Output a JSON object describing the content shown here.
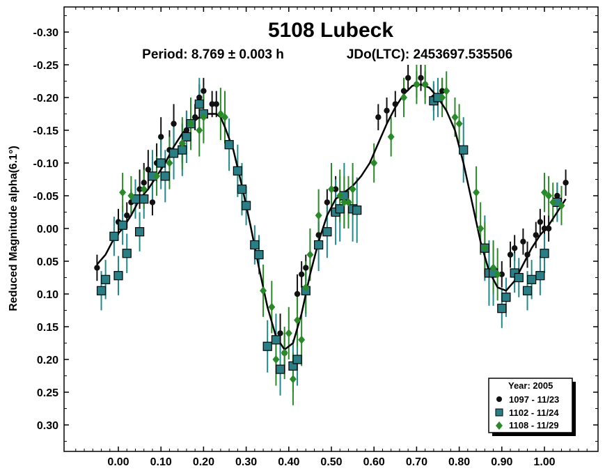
{
  "chart_data": {
    "type": "scatter",
    "title": "5108 Lubeck",
    "period_text": "Period: 8.769 ± 0.003 h",
    "epoch_text": "JDo(LTC): 2453697.535506",
    "xlabel": "",
    "ylabel": "Reduced Magnitude alpha(6.1°)",
    "xlim": [
      -0.1,
      1.12
    ],
    "ylim": [
      -0.35,
      0.35
    ],
    "y_inverted": true,
    "grid": false,
    "x_ticks": [
      0.0,
      0.1,
      0.2,
      0.3,
      0.4,
      0.5,
      0.6,
      0.7,
      0.8,
      0.9,
      1.0
    ],
    "x_tick_labels": [
      "0.00",
      "0.10",
      "0.20",
      "0.30",
      "0.40",
      "0.50",
      "0.60",
      "0.70",
      "0.80",
      "0.90",
      "1.00"
    ],
    "y_ticks": [
      -0.3,
      -0.25,
      -0.2,
      -0.15,
      -0.1,
      -0.05,
      0.0,
      0.05,
      0.1,
      0.15,
      0.2,
      0.25,
      0.3
    ],
    "y_tick_labels": [
      "-0.30",
      "-0.25",
      "-0.20",
      "-0.15",
      "-0.10",
      "-0.05",
      "0.00",
      "0.05",
      "0.10",
      "0.15",
      "0.20",
      "0.25",
      "0.30"
    ],
    "legend": {
      "placement": "bottom-right",
      "title": "Year: 2005",
      "entries": [
        "1097 - 11/23",
        "1102 - 11/24",
        "1108 - 11/29"
      ]
    },
    "series": [
      {
        "name": "1097 - 11/23",
        "marker": "circle",
        "color": "#111111",
        "error_color": "#111111",
        "points": [
          [
            -0.05,
            0.06,
            0.02
          ],
          [
            0.02,
            -0.02,
            0.02
          ],
          [
            0.0,
            -0.01,
            0.02
          ],
          [
            0.03,
            -0.04,
            0.02
          ],
          [
            0.05,
            -0.06,
            0.03
          ],
          [
            0.07,
            -0.09,
            0.03
          ],
          [
            0.09,
            -0.1,
            0.03
          ],
          [
            0.1,
            -0.14,
            0.03
          ],
          [
            0.12,
            -0.12,
            0.03
          ],
          [
            0.13,
            -0.16,
            0.03
          ],
          [
            0.15,
            -0.13,
            0.03
          ],
          [
            0.16,
            -0.15,
            0.03
          ],
          [
            0.18,
            -0.17,
            0.02
          ],
          [
            0.19,
            -0.2,
            0.02
          ],
          [
            0.2,
            -0.21,
            0.02
          ],
          [
            0.22,
            -0.19,
            0.02
          ],
          [
            0.23,
            -0.19,
            0.02
          ],
          [
            0.08,
            -0.04,
            0.02
          ],
          [
            0.06,
            -0.07,
            0.03
          ],
          [
            0.38,
            0.16,
            0.03
          ],
          [
            0.39,
            0.19,
            0.03
          ],
          [
            0.42,
            0.1,
            0.03
          ],
          [
            0.43,
            0.07,
            0.02
          ],
          [
            0.44,
            0.06,
            0.02
          ],
          [
            0.47,
            0.01,
            0.02
          ],
          [
            0.49,
            -0.04,
            0.02
          ],
          [
            0.51,
            -0.06,
            0.02
          ],
          [
            0.54,
            -0.04,
            0.02
          ],
          [
            0.61,
            -0.17,
            0.02
          ],
          [
            0.63,
            -0.18,
            0.02
          ],
          [
            0.65,
            -0.19,
            0.02
          ],
          [
            0.67,
            -0.21,
            0.02
          ],
          [
            0.68,
            -0.23,
            0.02
          ],
          [
            0.7,
            -0.22,
            0.02
          ],
          [
            0.71,
            -0.23,
            0.02
          ],
          [
            0.72,
            -0.22,
            0.02
          ],
          [
            0.74,
            -0.2,
            0.02
          ],
          [
            0.76,
            -0.21,
            0.02
          ],
          [
            0.9,
            0.07,
            0.02
          ],
          [
            0.92,
            0.04,
            0.02
          ],
          [
            0.93,
            0.03,
            0.02
          ],
          [
            0.95,
            0.02,
            0.02
          ],
          [
            0.96,
            0.04,
            0.02
          ],
          [
            0.98,
            0.01,
            0.02
          ],
          [
            0.99,
            -0.01,
            0.02
          ],
          [
            1.0,
            0.0,
            0.02
          ],
          [
            1.01,
            0.0,
            0.02
          ],
          [
            1.03,
            -0.05,
            0.02
          ],
          [
            1.05,
            -0.07,
            0.02
          ]
        ]
      },
      {
        "name": "1102 - 11/24",
        "marker": "square",
        "color": "#2a7f86",
        "error_color": "#1f8a8a",
        "points": [
          [
            -0.04,
            0.095,
            0.03
          ],
          [
            -0.03,
            0.078,
            0.03
          ],
          [
            0.0,
            0.072,
            0.03
          ],
          [
            -0.01,
            0.012,
            0.03
          ],
          [
            0.01,
            -0.005,
            0.03
          ],
          [
            0.02,
            0.038,
            0.03
          ],
          [
            0.04,
            -0.045,
            0.03
          ],
          [
            0.05,
            0.005,
            0.03
          ],
          [
            0.06,
            -0.045,
            0.03
          ],
          [
            0.08,
            -0.08,
            0.04
          ],
          [
            0.1,
            -0.1,
            0.04
          ],
          [
            0.11,
            -0.08,
            0.04
          ],
          [
            0.13,
            -0.115,
            0.04
          ],
          [
            0.15,
            -0.12,
            0.04
          ],
          [
            0.16,
            -0.14,
            0.04
          ],
          [
            0.17,
            -0.16,
            0.04
          ],
          [
            0.19,
            -0.19,
            0.04
          ],
          [
            0.2,
            -0.175,
            0.04
          ],
          [
            0.26,
            -0.128,
            0.04
          ],
          [
            0.28,
            -0.088,
            0.04
          ],
          [
            0.29,
            -0.06,
            0.04
          ],
          [
            0.3,
            -0.035,
            0.03
          ],
          [
            0.32,
            0.025,
            0.03
          ],
          [
            0.33,
            0.04,
            0.03
          ],
          [
            0.35,
            0.18,
            0.04
          ],
          [
            0.37,
            0.17,
            0.04
          ],
          [
            0.38,
            0.215,
            0.04
          ],
          [
            0.41,
            0.21,
            0.04
          ],
          [
            0.42,
            0.2,
            0.04
          ],
          [
            0.44,
            0.095,
            0.04
          ],
          [
            0.47,
            0.025,
            0.04
          ],
          [
            0.49,
            0.005,
            0.04
          ],
          [
            0.51,
            -0.025,
            0.05
          ],
          [
            0.52,
            -0.03,
            0.05
          ],
          [
            0.53,
            -0.05,
            0.05
          ],
          [
            0.55,
            -0.03,
            0.05
          ],
          [
            0.56,
            -0.028,
            0.05
          ],
          [
            0.74,
            -0.195,
            0.03
          ],
          [
            0.75,
            -0.2,
            0.03
          ],
          [
            0.81,
            -0.12,
            0.05
          ],
          [
            0.86,
            0.03,
            0.05
          ],
          [
            0.87,
            0.068,
            0.05
          ],
          [
            0.88,
            0.068,
            0.05
          ],
          [
            0.9,
            0.122,
            0.03
          ],
          [
            0.91,
            0.105,
            0.03
          ],
          [
            0.93,
            0.068,
            0.03
          ],
          [
            0.94,
            0.075,
            0.03
          ],
          [
            0.96,
            0.095,
            0.03
          ],
          [
            0.97,
            0.078,
            0.03
          ],
          [
            0.99,
            0.072,
            0.03
          ],
          [
            1.0,
            0.038,
            0.03
          ],
          [
            1.03,
            -0.04,
            0.03
          ]
        ]
      },
      {
        "name": "1108 - 11/29",
        "marker": "diamond",
        "color": "#2a8a2a",
        "error_color": "#2a8a2a",
        "points": [
          [
            0.01,
            -0.055,
            0.03
          ],
          [
            0.03,
            -0.05,
            0.03
          ],
          [
            0.06,
            -0.06,
            0.03
          ],
          [
            0.09,
            -0.08,
            0.03
          ],
          [
            0.12,
            -0.1,
            0.04
          ],
          [
            0.15,
            -0.13,
            0.04
          ],
          [
            0.17,
            -0.16,
            0.04
          ],
          [
            0.19,
            -0.15,
            0.04
          ],
          [
            0.2,
            -0.17,
            0.04
          ],
          [
            0.24,
            -0.175,
            0.04
          ],
          [
            0.25,
            -0.17,
            0.04
          ],
          [
            0.34,
            0.095,
            0.04
          ],
          [
            0.36,
            0.12,
            0.04
          ],
          [
            0.37,
            0.2,
            0.04
          ],
          [
            0.39,
            0.19,
            0.04
          ],
          [
            0.4,
            0.16,
            0.04
          ],
          [
            0.41,
            0.23,
            0.04
          ],
          [
            0.42,
            0.14,
            0.04
          ],
          [
            0.43,
            0.17,
            0.04
          ],
          [
            0.44,
            0.09,
            0.04
          ],
          [
            0.45,
            0.04,
            0.04
          ],
          [
            0.47,
            -0.02,
            0.04
          ],
          [
            0.5,
            -0.06,
            0.04
          ],
          [
            0.52,
            -0.05,
            0.04
          ],
          [
            0.53,
            -0.04,
            0.04
          ],
          [
            0.54,
            -0.04,
            0.04
          ],
          [
            0.55,
            -0.06,
            0.04
          ],
          [
            0.6,
            -0.1,
            0.03
          ],
          [
            0.64,
            -0.14,
            0.03
          ],
          [
            0.67,
            -0.2,
            0.03
          ],
          [
            0.7,
            -0.22,
            0.03
          ],
          [
            0.72,
            -0.22,
            0.03
          ],
          [
            0.76,
            -0.2,
            0.03
          ],
          [
            0.77,
            -0.21,
            0.03
          ],
          [
            0.79,
            -0.17,
            0.03
          ],
          [
            0.8,
            -0.16,
            0.03
          ],
          [
            0.84,
            -0.055,
            0.04
          ],
          [
            0.85,
            0.0,
            0.04
          ],
          [
            0.86,
            0.03,
            0.04
          ],
          [
            0.88,
            0.06,
            0.04
          ],
          [
            0.89,
            0.07,
            0.04
          ],
          [
            1.0,
            -0.055,
            0.03
          ],
          [
            1.01,
            -0.05,
            0.03
          ],
          [
            1.02,
            -0.04,
            0.03
          ],
          [
            1.04,
            -0.035,
            0.03
          ]
        ]
      }
    ],
    "fit_curve": {
      "color": "#000000",
      "points": [
        [
          -0.05,
          0.055
        ],
        [
          -0.03,
          0.04
        ],
        [
          -0.01,
          0.015
        ],
        [
          0.01,
          0.0
        ],
        [
          0.03,
          -0.02
        ],
        [
          0.05,
          -0.045
        ],
        [
          0.07,
          -0.06
        ],
        [
          0.09,
          -0.08
        ],
        [
          0.11,
          -0.1
        ],
        [
          0.13,
          -0.125
        ],
        [
          0.15,
          -0.145
        ],
        [
          0.17,
          -0.16
        ],
        [
          0.19,
          -0.17
        ],
        [
          0.21,
          -0.175
        ],
        [
          0.23,
          -0.175
        ],
        [
          0.24,
          -0.17
        ],
        [
          0.25,
          -0.155
        ],
        [
          0.27,
          -0.12
        ],
        [
          0.29,
          -0.065
        ],
        [
          0.31,
          -0.005
        ],
        [
          0.33,
          0.06
        ],
        [
          0.35,
          0.12
        ],
        [
          0.37,
          0.165
        ],
        [
          0.39,
          0.185
        ],
        [
          0.41,
          0.175
        ],
        [
          0.43,
          0.13
        ],
        [
          0.45,
          0.07
        ],
        [
          0.47,
          0.02
        ],
        [
          0.49,
          -0.02
        ],
        [
          0.51,
          -0.045
        ],
        [
          0.53,
          -0.055
        ],
        [
          0.55,
          -0.065
        ],
        [
          0.57,
          -0.08
        ],
        [
          0.59,
          -0.1
        ],
        [
          0.61,
          -0.13
        ],
        [
          0.63,
          -0.16
        ],
        [
          0.65,
          -0.185
        ],
        [
          0.67,
          -0.205
        ],
        [
          0.69,
          -0.218
        ],
        [
          0.71,
          -0.22
        ],
        [
          0.73,
          -0.215
        ],
        [
          0.75,
          -0.2
        ],
        [
          0.77,
          -0.18
        ],
        [
          0.79,
          -0.15
        ],
        [
          0.81,
          -0.1
        ],
        [
          0.83,
          -0.04
        ],
        [
          0.85,
          0.02
        ],
        [
          0.87,
          0.065
        ],
        [
          0.89,
          0.09
        ],
        [
          0.91,
          0.095
        ],
        [
          0.93,
          0.08
        ],
        [
          0.95,
          0.055
        ],
        [
          0.97,
          0.03
        ],
        [
          0.99,
          0.01
        ],
        [
          1.01,
          -0.005
        ],
        [
          1.03,
          -0.025
        ],
        [
          1.05,
          -0.045
        ]
      ]
    }
  }
}
